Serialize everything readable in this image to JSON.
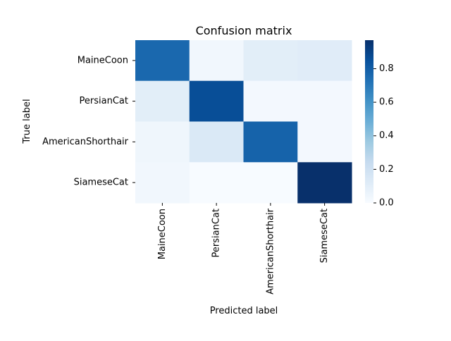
{
  "chart_data": {
    "type": "heatmap",
    "title": "Confusion matrix",
    "xlabel": "Predicted label",
    "ylabel": "True label",
    "x_categories": [
      "MaineCoon",
      "PersianCat",
      "AmericanShorthair",
      "SiameseCat"
    ],
    "y_categories": [
      "MaineCoon",
      "PersianCat",
      "AmericanShorthair",
      "SiameseCat"
    ],
    "values": [
      [
        0.76,
        0.03,
        0.1,
        0.11
      ],
      [
        0.1,
        0.86,
        0.02,
        0.02
      ],
      [
        0.04,
        0.14,
        0.78,
        0.02
      ],
      [
        0.03,
        0.0,
        0.0,
        0.97
      ]
    ],
    "colorbar": {
      "min": 0.0,
      "max": 0.97,
      "ticks": [
        "0.0",
        "0.2",
        "0.4",
        "0.6",
        "0.8"
      ],
      "tick_values": [
        0.0,
        0.2,
        0.4,
        0.6,
        0.8
      ]
    },
    "colormap": "Blues",
    "colormap_stops": [
      "#f7fbff",
      "#deebf7",
      "#c6dbef",
      "#9ecae1",
      "#6baed6",
      "#4292c6",
      "#2171b5",
      "#08519c",
      "#08306b"
    ],
    "grid": false
  }
}
